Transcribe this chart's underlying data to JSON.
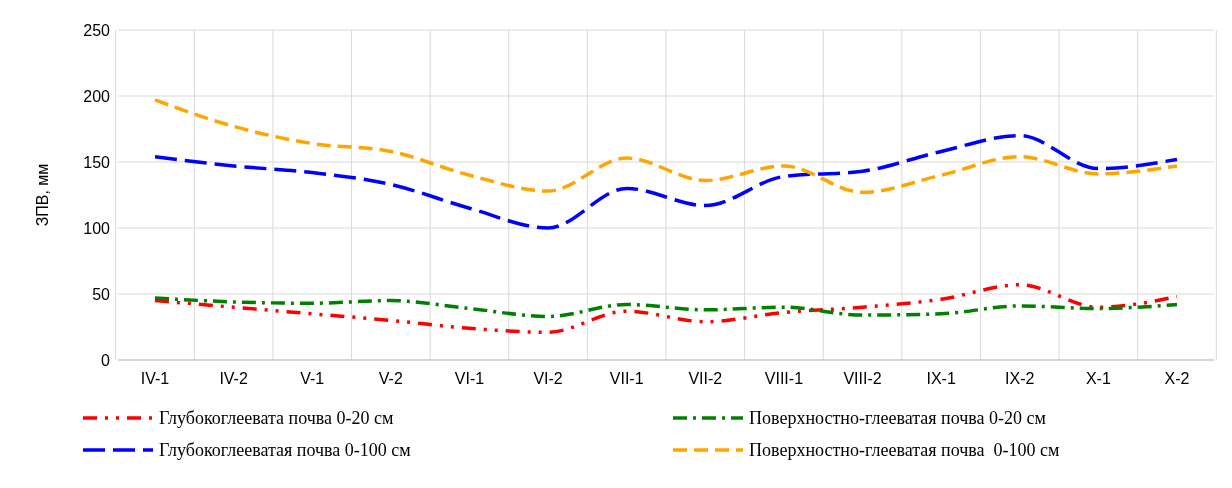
{
  "chart_data": {
    "type": "line",
    "ylabel": "ЗПВ, мм",
    "categories": [
      "IV-1",
      "IV-2",
      "V-1",
      "V-2",
      "VI-1",
      "VI-2",
      "VII-1",
      "VII-2",
      "VIII-1",
      "VIII-2",
      "IX-1",
      "IX-2",
      "X-1",
      "X-2"
    ],
    "series": [
      {
        "name": "Глубокоглеевата почва 0-20 см",
        "color": "#ff0000",
        "line_style": "dashed",
        "values": [
          45,
          40,
          35,
          30,
          24,
          21,
          37,
          29,
          36,
          40,
          46,
          57,
          40,
          48
        ]
      },
      {
        "name": "Поверхностно-глееватая почва 0-20 см",
        "color": "#008000",
        "line_style": "dashed",
        "values": [
          47,
          44,
          43,
          45,
          39,
          33,
          42,
          38,
          40,
          34,
          35,
          41,
          39,
          42
        ]
      },
      {
        "name": "Глубокоглееватая почва 0-100 см",
        "color": "#0000ff",
        "line_style": "dashed",
        "values": [
          154,
          147,
          142,
          133,
          115,
          100,
          130,
          117,
          139,
          143,
          158,
          170,
          145,
          152
        ]
      },
      {
        "name": "Поверхностно-глееватая почва  0-100 см",
        "color": "#ffa500",
        "line_style": "dashed",
        "values": [
          197,
          177,
          164,
          158,
          140,
          128,
          153,
          136,
          147,
          127,
          140,
          154,
          141,
          147
        ]
      }
    ],
    "ylim": [
      0,
      250
    ],
    "yticks": [
      0,
      50,
      100,
      150,
      200,
      250
    ],
    "grid": true,
    "legend": "bottom",
    "marker": "none"
  }
}
